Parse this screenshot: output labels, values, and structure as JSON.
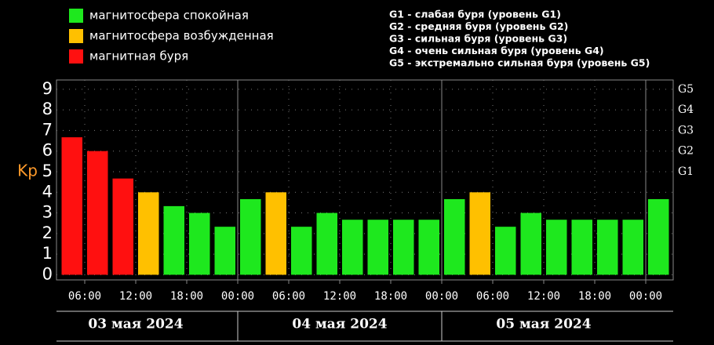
{
  "chart_data": {
    "type": "bar",
    "ylabel": "Kp",
    "legend": [
      {
        "label": "магнитосфера спокойная",
        "color": "#1ee81e"
      },
      {
        "label": "магнитосфера возбужденная",
        "color": "#ffc000"
      },
      {
        "label": "магнитная буря",
        "color": "#ff1010"
      }
    ],
    "storm_levels": [
      "G1 - слабая буря (уровень G1)",
      "G2 - средняя буря (уровень G2)",
      "G3 - сильная буря (уровень G3)",
      "G4 - очень сильная буря (уровень G4)",
      "G5 - экстремально сильная буря (уровень G5)"
    ],
    "categories": [
      null,
      null,
      null,
      null,
      null,
      null,
      null,
      null,
      null,
      null,
      null,
      null,
      null,
      null,
      null,
      null,
      null,
      null,
      null,
      null,
      null,
      null,
      null,
      null
    ],
    "values": [
      6.67,
      6.0,
      4.67,
      4.0,
      3.33,
      3.0,
      2.33,
      3.67,
      4.0,
      2.33,
      3.0,
      2.67,
      2.67,
      2.67,
      2.67,
      3.67,
      4.0,
      2.33,
      3.0,
      2.67,
      2.67,
      2.67,
      2.67,
      3.67
    ],
    "colors": [
      "#ff1010",
      "#ff1010",
      "#ff1010",
      "#ffc000",
      "#1ee81e",
      "#1ee81e",
      "#1ee81e",
      "#1ee81e",
      "#ffc000",
      "#1ee81e",
      "#1ee81e",
      "#1ee81e",
      "#1ee81e",
      "#1ee81e",
      "#1ee81e",
      "#1ee81e",
      "#ffc000",
      "#1ee81e",
      "#1ee81e",
      "#1ee81e",
      "#1ee81e",
      "#1ee81e",
      "#1ee81e",
      "#1ee81e"
    ],
    "x_tick_labels": [
      "06:00",
      "12:00",
      "18:00",
      "00:00",
      "06:00",
      "12:00",
      "18:00",
      "00:00",
      "06:00",
      "12:00",
      "18:00",
      "00:00"
    ],
    "days": [
      "03 мая 2024",
      "04 мая 2024",
      "05 мая 2024"
    ],
    "ylim": [
      -0.25,
      9.45
    ],
    "yticks": [
      0,
      1,
      2,
      3,
      4,
      5,
      6,
      7,
      8,
      9
    ],
    "y2lim": [
      -0.25,
      9.45
    ],
    "y2ticks": [
      {
        "value": 5,
        "label": "G1"
      },
      {
        "value": 6,
        "label": "G2"
      },
      {
        "value": 7,
        "label": "G3"
      },
      {
        "value": 8,
        "label": "G4"
      },
      {
        "value": 9,
        "label": "G5"
      }
    ],
    "grid": true
  }
}
